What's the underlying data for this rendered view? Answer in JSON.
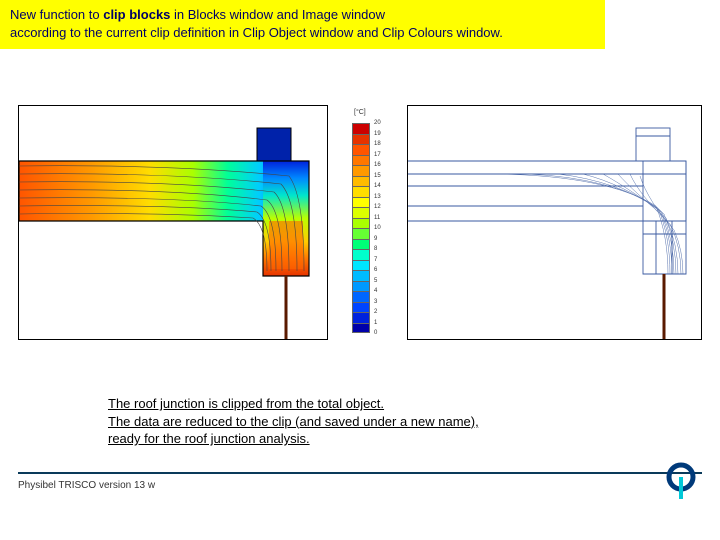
{
  "banner": {
    "line1_pre": "New function to ",
    "line1_bold": "clip blocks",
    "line1_post": " in Blocks window and Image window",
    "line2": "according to the current clip definition in Clip Object window and Clip Colours window.",
    "bg": "#ffff00",
    "text_color": "#000066",
    "fontsize": 13
  },
  "colorbar": {
    "unit": "[°C]",
    "values": [
      20,
      19,
      18,
      17,
      16,
      15,
      14,
      13,
      12,
      11,
      10,
      9,
      8,
      7,
      6,
      5,
      4,
      3,
      2,
      1,
      0
    ],
    "colors": [
      "#cc0000",
      "#e63300",
      "#ff5500",
      "#ff7700",
      "#ff9900",
      "#ffbb00",
      "#ffdd00",
      "#ffff00",
      "#ddff00",
      "#aaff00",
      "#66ff33",
      "#00ff77",
      "#00ffcc",
      "#00e6ff",
      "#00bbff",
      "#0099ff",
      "#0066ff",
      "#0044ff",
      "#0022dd",
      "#0000aa"
    ],
    "cell_height": 10.5
  },
  "figure_left": {
    "type": "thermal-contour",
    "gradient_colors": [
      "#cc0000",
      "#ff5500",
      "#ff9900",
      "#ffdd00",
      "#ddff00",
      "#66ff33",
      "#00ffcc",
      "#00bbff",
      "#0066ff",
      "#0022dd"
    ],
    "isoline_color": "#444444",
    "outline_color": "#000000",
    "stem_color": "#5a1a00"
  },
  "figure_right": {
    "type": "wireframe-flux",
    "line_color": "#3a5aa0",
    "outline_color": "#000000",
    "stem_color": "#5a1a00"
  },
  "description": {
    "lines": [
      "The roof junction is clipped from the total object.",
      "The data are reduced to the clip (and saved under a new name),",
      "ready for the roof junction analysis."
    ],
    "fontsize": 13,
    "text_color": "#000000",
    "underline": true
  },
  "footer": {
    "text": "Physibel TRISCO version 13 w",
    "rule_color": "#0a3a5a",
    "fontsize": 10
  },
  "logo": {
    "ring_color": "#003a7a",
    "stem_color": "#00c8d8"
  }
}
